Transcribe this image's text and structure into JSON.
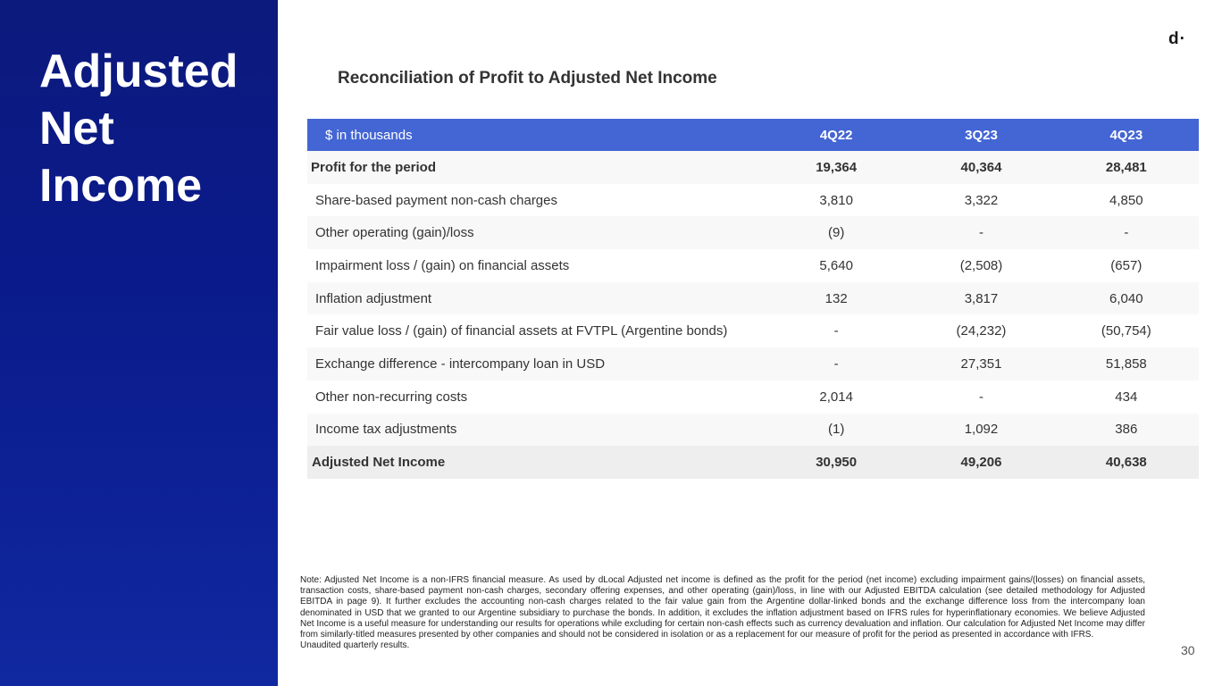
{
  "sidebar": {
    "title_lines": [
      "Adjusted",
      "Net",
      "Income"
    ]
  },
  "logo": "d·",
  "table": {
    "title": "Reconciliation of Profit to Adjusted Net Income",
    "headers": [
      "$ in thousands",
      "4Q22",
      "3Q23",
      "4Q23"
    ],
    "rows": [
      {
        "label": "Profit for the period",
        "values": [
          "19,364",
          "40,364",
          "28,481"
        ]
      },
      {
        "label": "Share-based payment non-cash charges",
        "values": [
          "3,810",
          "3,322",
          "4,850"
        ]
      },
      {
        "label": "Other operating (gain)/loss",
        "values": [
          "(9)",
          "-",
          "-"
        ]
      },
      {
        "label": "Impairment loss / (gain) on financial assets",
        "values": [
          "5,640",
          "(2,508)",
          "(657)"
        ]
      },
      {
        "label": "Inflation adjustment",
        "values": [
          "132",
          "3,817",
          "6,040"
        ]
      },
      {
        "label": "Fair value loss / (gain) of financial assets at FVTPL (Argentine bonds)",
        "values": [
          "-",
          "(24,232)",
          "(50,754)"
        ]
      },
      {
        "label": "Exchange difference - intercompany loan in USD",
        "values": [
          "-",
          "27,351",
          "51,858"
        ]
      },
      {
        "label": "Other non-recurring costs",
        "values": [
          "2,014",
          "-",
          "434"
        ]
      },
      {
        "label": "Income tax adjustments",
        "values": [
          "(1)",
          "1,092",
          "386"
        ]
      },
      {
        "label": "Adjusted Net Income",
        "values": [
          "30,950",
          "49,206",
          "40,638"
        ]
      }
    ]
  },
  "note": {
    "text": "Note: Adjusted Net Income is a non-IFRS financial measure. As used by dLocal Adjusted net income is defined as the profit for the period (net income) excluding impairment gains/(losses) on financial assets, transaction costs, share-based payment non-cash charges, secondary offering expenses, and other operating (gain)/loss, in line with our Adjusted EBITDA calculation (see detailed methodology for Adjusted EBITDA in page 9). It further excludes the accounting non-cash charges related to the fair value gain from the Argentine dollar-linked bonds and the exchange difference loss from the intercompany loan denominated in USD that we granted to our Argentine subsidiary to purchase the bonds. In addition, it excludes the inflation adjustment based on IFRS rules for hyperinflationary economies. We believe Adjusted Net Income is a useful measure for understanding our results for operations while excluding for certain non-cash effects such as currency devaluation and inflation. Our calculation for Adjusted Net Income may differ from similarly-titled measures presented by other companies and should not be considered in isolation or as a replacement for our measure of profit for the period as presented in accordance with IFRS.",
    "unaudited": "Unaudited quarterly results."
  },
  "page_number": "30"
}
